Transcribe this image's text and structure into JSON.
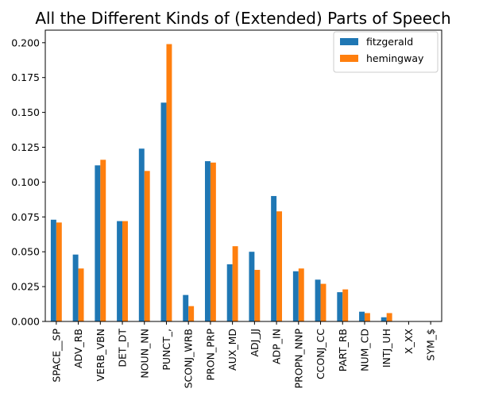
{
  "chart_data": {
    "type": "bar",
    "title": "All the Different Kinds of (Extended) Parts of Speech",
    "xlabel": "",
    "ylabel": "",
    "categories": [
      "SPACE__SP",
      "ADV_RB",
      "VERB_VBN",
      "DET_DT",
      "NOUN_NN",
      "PUNCT_,",
      "SCONJ_WRB",
      "PRON_PRP",
      "AUX_MD",
      "ADJ_JJ",
      "ADP_IN",
      "PROPN_NNP",
      "CCONJ_CC",
      "PART_RB",
      "NUM_CD",
      "INTJ_UH",
      "X_XX",
      "SYM_$"
    ],
    "series": [
      {
        "name": "fitzgerald",
        "color": "#1f77b4",
        "values": [
          0.073,
          0.048,
          0.112,
          0.072,
          0.124,
          0.157,
          0.019,
          0.115,
          0.041,
          0.05,
          0.09,
          0.036,
          0.03,
          0.021,
          0.007,
          0.003,
          0.0,
          0.0
        ]
      },
      {
        "name": "hemingway",
        "color": "#ff7f0e",
        "values": [
          0.071,
          0.038,
          0.116,
          0.072,
          0.108,
          0.199,
          0.011,
          0.114,
          0.054,
          0.037,
          0.079,
          0.038,
          0.027,
          0.023,
          0.006,
          0.006,
          0.0,
          0.0
        ]
      }
    ],
    "ylim": [
      0,
      0.209
    ],
    "yticks": [
      "0.000",
      "0.025",
      "0.050",
      "0.075",
      "0.100",
      "0.125",
      "0.150",
      "0.175",
      "0.200"
    ],
    "ytick_values": [
      0.0,
      0.025,
      0.05,
      0.075,
      0.1,
      0.125,
      0.15,
      0.175,
      0.2
    ],
    "grid": false,
    "legend_position": "top-right"
  }
}
